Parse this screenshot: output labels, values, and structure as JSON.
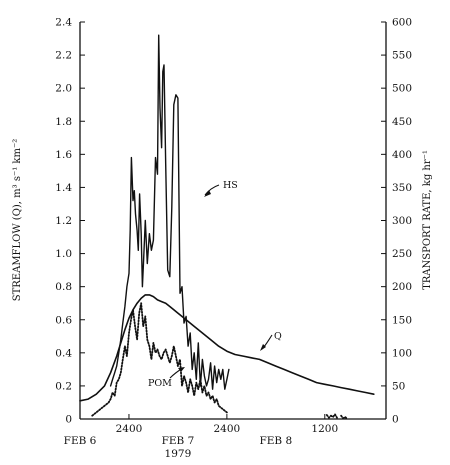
{
  "chart_data": {
    "type": "line",
    "title": "",
    "ylabel_left": "STREAMFLOW (Q), m³ s⁻¹ km⁻²",
    "ylabel_right": "TRANSPORT RATE, kg hr⁻¹",
    "x_unit": "hours since 0000, FEB 6 1979",
    "x_range": [
      0,
      75
    ],
    "y_left_range": [
      0,
      2.4
    ],
    "y_right_range": [
      0,
      600
    ],
    "y_left_ticks": [
      "0",
      "0.2",
      "0.4",
      "0.6",
      "0.8",
      "1.0",
      "1.2",
      "1.4",
      "1.6",
      "1.8",
      "2.0",
      "2.2",
      "2.4"
    ],
    "y_right_ticks": [
      "0",
      "50",
      "100",
      "150",
      "200",
      "250",
      "300",
      "350",
      "400",
      "450",
      "500",
      "550",
      "600"
    ],
    "x_ticks": [
      {
        "hour": 12,
        "label": "2400"
      },
      {
        "hour": 36,
        "label": "2400"
      },
      {
        "hour": 60,
        "label": "1200"
      }
    ],
    "x_day_labels": [
      {
        "hour": 0,
        "label": "FEB 6"
      },
      {
        "hour": 24,
        "label": "FEB 7"
      },
      {
        "hour": 48,
        "label": "FEB 8"
      }
    ],
    "year_label": "1979",
    "annotations": [
      {
        "text": "HS",
        "series": "HS"
      },
      {
        "text": "Q",
        "series": "Q"
      },
      {
        "text": "POM",
        "series": "POM"
      }
    ],
    "series": [
      {
        "name": "Q",
        "axis": "left",
        "style": "solid",
        "x": [
          0,
          2,
          4,
          6,
          7.5,
          9,
          10,
          11,
          12,
          13,
          14,
          15,
          16,
          17,
          18,
          19,
          20,
          21,
          22,
          23,
          24,
          26,
          28,
          30,
          32,
          34,
          36,
          38,
          40,
          42,
          44,
          46,
          48,
          50,
          52,
          54,
          56,
          58,
          60,
          62,
          64,
          66,
          68,
          70,
          72
        ],
        "y": [
          0.11,
          0.12,
          0.15,
          0.2,
          0.28,
          0.38,
          0.46,
          0.54,
          0.61,
          0.66,
          0.7,
          0.73,
          0.75,
          0.75,
          0.74,
          0.72,
          0.71,
          0.7,
          0.68,
          0.66,
          0.64,
          0.6,
          0.56,
          0.52,
          0.48,
          0.44,
          0.41,
          0.39,
          0.38,
          0.37,
          0.36,
          0.34,
          0.32,
          0.3,
          0.28,
          0.26,
          0.24,
          0.22,
          0.21,
          0.2,
          0.19,
          0.18,
          0.17,
          0.16,
          0.15
        ]
      },
      {
        "name": "HS",
        "axis": "right",
        "style": "solid",
        "x": [
          7.5,
          8,
          8.5,
          9,
          9.5,
          10,
          10.5,
          11,
          11.5,
          12,
          12.3,
          12.6,
          13,
          13.3,
          13.6,
          14,
          14.3,
          14.6,
          15,
          15.3,
          15.6,
          16,
          16.5,
          17,
          17.5,
          18,
          18.5,
          19,
          19.3,
          19.6,
          20,
          20.3,
          20.6,
          21,
          21.5,
          22,
          22.5,
          23,
          23.5,
          24,
          24.5,
          25,
          25.5,
          26,
          26.5,
          27,
          27.5,
          28,
          28.5,
          29,
          29.5,
          30,
          30.5,
          31,
          31.5,
          32,
          32.5,
          33,
          33.5,
          34,
          34.5,
          35,
          35.5,
          36,
          36.5
        ],
        "y": [
          50,
          60,
          70,
          80,
          100,
          120,
          145,
          170,
          200,
          220,
          285,
          395,
          330,
          345,
          310,
          285,
          255,
          340,
          280,
          200,
          240,
          300,
          235,
          280,
          255,
          270,
          395,
          370,
          580,
          470,
          410,
          525,
          535,
          385,
          225,
          215,
          320,
          475,
          490,
          485,
          190,
          200,
          145,
          155,
          110,
          130,
          75,
          100,
          60,
          115,
          50,
          90,
          65,
          50,
          60,
          85,
          45,
          80,
          55,
          75,
          60,
          75,
          45,
          60,
          75
        ]
      },
      {
        "name": "POM",
        "axis": "right",
        "style": "dotted",
        "x": [
          3,
          4,
          5,
          6,
          7,
          7.5,
          8,
          8.5,
          9,
          9.5,
          10,
          10.5,
          11,
          11.5,
          12,
          12.5,
          13,
          13.5,
          14,
          14.5,
          15,
          15.5,
          16,
          16.5,
          17,
          17.5,
          18,
          18.5,
          19,
          19.5,
          20,
          20.5,
          21,
          21.5,
          22,
          22.5,
          23,
          23.5,
          24,
          24.5,
          25,
          25.5,
          26,
          26.5,
          27,
          27.5,
          28,
          28.5,
          29,
          29.5,
          30,
          30.5,
          31,
          31.5,
          32,
          32.5,
          33,
          33.5,
          34,
          35,
          36
        ],
        "y": [
          5,
          10,
          15,
          20,
          25,
          30,
          40,
          35,
          55,
          60,
          70,
          90,
          110,
          95,
          130,
          150,
          165,
          140,
          120,
          160,
          175,
          140,
          155,
          120,
          110,
          90,
          115,
          100,
          105,
          95,
          90,
          100,
          105,
          95,
          85,
          95,
          110,
          95,
          80,
          90,
          50,
          65,
          55,
          40,
          60,
          50,
          35,
          55,
          45,
          60,
          40,
          50,
          35,
          40,
          30,
          35,
          25,
          30,
          20,
          15,
          10
        ]
      },
      {
        "name": "",
        "axis": "right",
        "style": "dotted",
        "x": [
          60.5,
          61,
          61.5,
          62,
          62.5,
          63
        ],
        "y": [
          6,
          2,
          5,
          3,
          7,
          2
        ]
      },
      {
        "name": "",
        "axis": "right",
        "style": "dotted",
        "x": [
          64,
          64.5,
          65,
          65.5
        ],
        "y": [
          5,
          1,
          3,
          0
        ]
      }
    ]
  }
}
